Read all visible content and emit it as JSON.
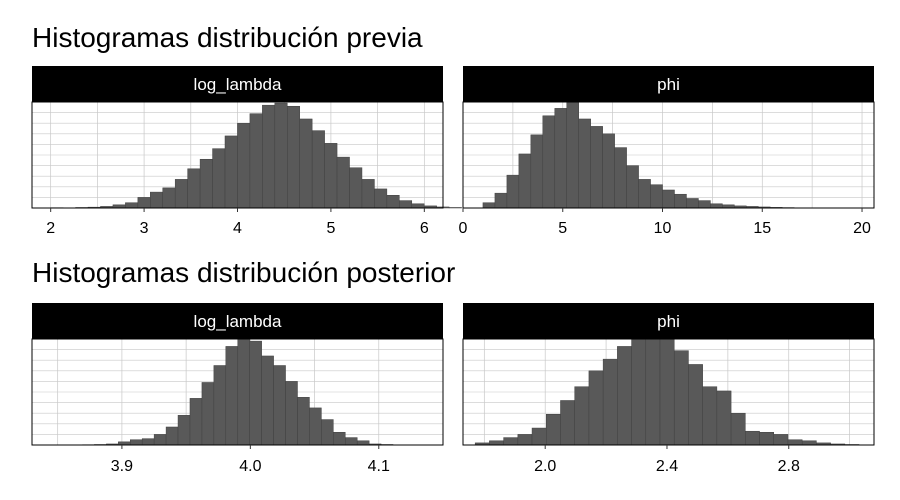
{
  "colors": {
    "bar": "#595959",
    "bar_edge": "#404040",
    "strip": "#000000",
    "strip_text": "#ffffff",
    "grid": "#c8c8c8",
    "panel_border": "#000000"
  },
  "sections": [
    {
      "title": "Histogramas distribución previa"
    },
    {
      "title": "Histogramas distribución posterior"
    }
  ],
  "chart_data": [
    {
      "type": "bar",
      "section": "Histogramas distribución previa",
      "facet": "log_lambda",
      "xlim": [
        1.8,
        6.2
      ],
      "ylim": [
        0,
        100
      ],
      "xticks": [
        2,
        3,
        4,
        5,
        6
      ],
      "tick_labels": [
        "2",
        "3",
        "4",
        "5",
        "6"
      ],
      "bin_start": 2.0,
      "bin_width": 0.1333,
      "values": [
        0.3,
        0.2,
        0.5,
        0.8,
        1.5,
        3,
        5,
        10,
        15,
        19,
        27,
        37,
        46,
        56,
        68,
        80,
        89,
        97,
        99,
        96,
        84,
        73,
        61,
        48,
        38,
        27,
        18,
        12,
        7,
        4,
        2,
        1,
        0.5
      ]
    },
    {
      "type": "bar",
      "section": "Histogramas distribución previa",
      "facet": "phi",
      "xlim": [
        0,
        20.6
      ],
      "ylim": [
        0,
        100
      ],
      "xticks": [
        0,
        5,
        10,
        15,
        20
      ],
      "tick_labels": [
        "0",
        "5",
        "10",
        "15",
        "20"
      ],
      "bin_start": 1.0,
      "bin_width": 0.6,
      "values": [
        5,
        14,
        31,
        51,
        69,
        87,
        94,
        100,
        84,
        77,
        70,
        57,
        40,
        27,
        22,
        17,
        13,
        9,
        7,
        4,
        3,
        2,
        1.5,
        1,
        0.6,
        0.4
      ]
    },
    {
      "type": "bar",
      "section": "Histogramas distribución posterior",
      "facet": "log_lambda",
      "xlim": [
        3.83,
        4.15
      ],
      "ylim": [
        0,
        100
      ],
      "xticks": [
        3.9,
        4.0,
        4.1
      ],
      "tick_labels": [
        "3.9",
        "4.0",
        "4.1"
      ],
      "bin_start": 3.86,
      "bin_width": 0.0093,
      "values": [
        0.2,
        0.3,
        0.5,
        1,
        3,
        5,
        6,
        10,
        17,
        28,
        44,
        59,
        75,
        93,
        105,
        98,
        84,
        75,
        60,
        45,
        35,
        24,
        12,
        7,
        4,
        1,
        0.5
      ]
    },
    {
      "type": "bar",
      "section": "Histogramas distribución posterior",
      "facet": "phi",
      "xlim": [
        1.73,
        3.08
      ],
      "ylim": [
        0,
        100
      ],
      "xticks": [
        2.0,
        2.4,
        2.8
      ],
      "tick_labels": [
        "2.0",
        "2.4",
        "2.8"
      ],
      "bin_start": 1.77,
      "bin_width": 0.0467,
      "values": [
        2,
        4,
        7,
        10,
        16,
        29,
        42,
        55,
        70,
        81,
        93,
        100,
        106,
        100,
        89,
        76,
        55,
        51,
        30,
        13,
        12,
        10,
        5,
        4,
        2,
        1,
        0.5
      ]
    }
  ]
}
